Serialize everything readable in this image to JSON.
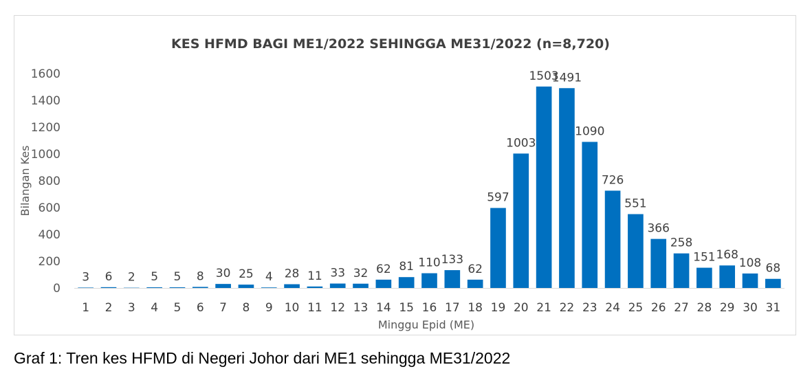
{
  "caption": "Graf 1: Tren kes HFMD di Negeri Johor dari ME1 sehingga ME31/2022",
  "chart_data": {
    "type": "bar",
    "title": "KES HFMD BAGI ME1/2022 SEHINGGA ME31/2022 (n=8,720)",
    "xlabel": "Minggu Epid (ME)",
    "ylabel": "Bilangan Kes",
    "categories": [
      "1",
      "2",
      "3",
      "4",
      "5",
      "6",
      "7",
      "8",
      "9",
      "10",
      "11",
      "12",
      "13",
      "14",
      "15",
      "16",
      "17",
      "18",
      "19",
      "20",
      "21",
      "22",
      "23",
      "24",
      "25",
      "26",
      "27",
      "28",
      "29",
      "30",
      "31"
    ],
    "values": [
      3,
      6,
      2,
      5,
      5,
      8,
      30,
      25,
      4,
      28,
      11,
      33,
      32,
      62,
      81,
      110,
      133,
      62,
      597,
      1003,
      1503,
      1491,
      1090,
      726,
      551,
      366,
      258,
      151,
      168,
      108,
      68
    ],
    "ylim": [
      0,
      1600
    ],
    "yticks": [
      0,
      200,
      400,
      600,
      800,
      1000,
      1200,
      1400,
      1600
    ],
    "grid": false,
    "legend": "none",
    "bar_color": "#0070c0",
    "data_labels": true
  }
}
